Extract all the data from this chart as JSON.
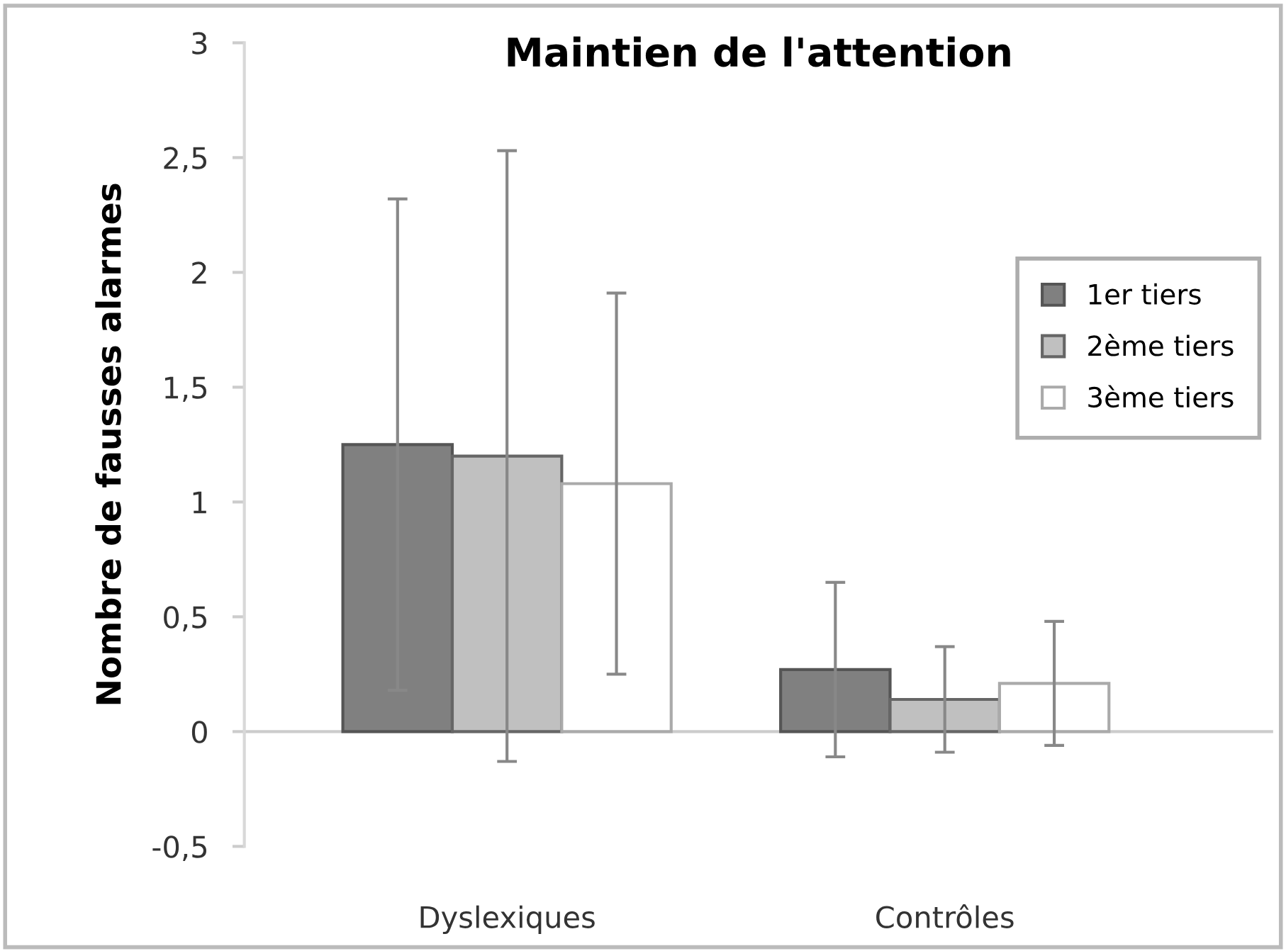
{
  "chart_data": {
    "type": "bar",
    "title": "Maintien de l'attention",
    "ylabel": "Nombre de fausses alarmes",
    "categories": [
      "Dyslexiques",
      "Contrôles"
    ],
    "series": [
      {
        "name": "1er tiers",
        "color": "#808080",
        "values": [
          1.25,
          0.27
        ],
        "errors": [
          1.07,
          0.38
        ]
      },
      {
        "name": "2ème tiers",
        "color": "#c0c0c0",
        "values": [
          1.2,
          0.14
        ],
        "errors": [
          1.33,
          0.23
        ]
      },
      {
        "name": "3ème tiers",
        "color": "#ffffff",
        "values": [
          1.08,
          0.21
        ],
        "errors": [
          0.83,
          0.27
        ]
      }
    ],
    "ylim": [
      -0.5,
      3
    ],
    "yticks": [
      {
        "value": -0.5,
        "label": "-0,5"
      },
      0,
      {
        "value": 0.5,
        "label": "0,5"
      },
      1,
      {
        "value": 1.5,
        "label": "1,5"
      },
      2,
      {
        "value": 2.5,
        "label": "2,5"
      },
      3
    ],
    "grid": false,
    "legend": "right"
  }
}
